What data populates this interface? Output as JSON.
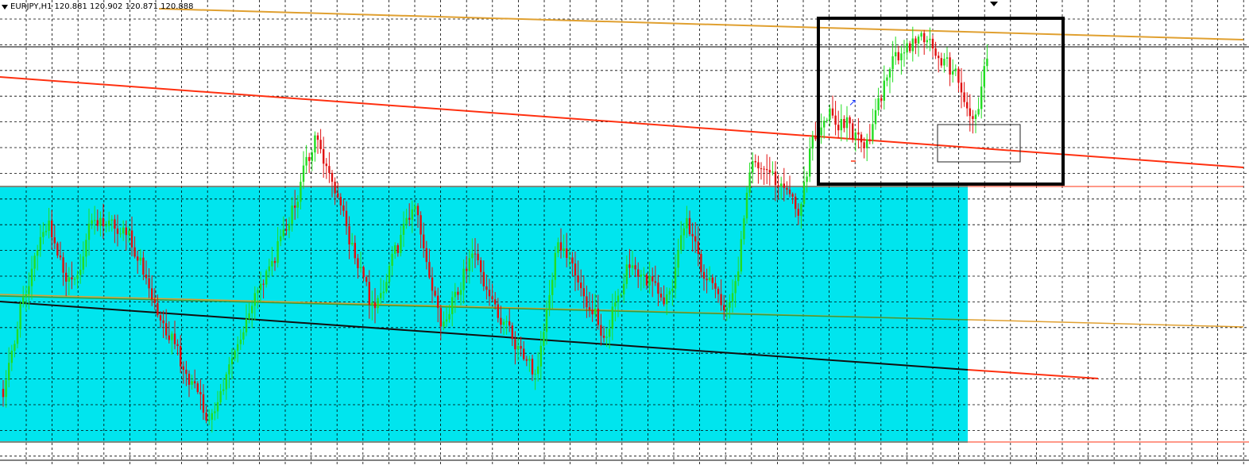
{
  "header": {
    "symbol": "EURJPY,H1",
    "ohlc": "120.881 120.902 120.871 120.888"
  },
  "colors": {
    "background": "#ffffff",
    "grid": "#000000",
    "zone_fill": "#00e5ee",
    "bull_candle": "#22dd22",
    "bear_candle": "#e01010",
    "trendline_gold": "#e0a030",
    "trendline_red": "#ff3010",
    "trendline_green": "#3a9a3a",
    "trendline_black": "#101010",
    "highlight_box": "#000000"
  },
  "chart_data": {
    "type": "candlestick",
    "instrument": "EURJPY",
    "timeframe": "H1",
    "last_bar": {
      "open": 120.881,
      "high": 120.902,
      "low": 120.871,
      "close": 120.888
    },
    "grid": true,
    "price_axis_labels_visible": false,
    "time_axis_labels_visible": false,
    "annotations": [
      {
        "kind": "rectangle-fill",
        "desc": "support zone"
      },
      {
        "kind": "trendline",
        "color": "gold",
        "desc": "upper descending line"
      },
      {
        "kind": "trendline",
        "color": "red",
        "desc": "descending resistance line"
      },
      {
        "kind": "trendline",
        "color": "green",
        "desc": "lower descending line"
      },
      {
        "kind": "trendline",
        "color": "black",
        "desc": "support line continuing as red"
      },
      {
        "kind": "rectangle-outline",
        "desc": "thick highlight box around recent price"
      },
      {
        "kind": "rectangle-outline",
        "desc": "small thin box"
      },
      {
        "kind": "horizontal-line",
        "color": "red",
        "desc": "zone top level"
      },
      {
        "kind": "horizontal-line",
        "color": "black",
        "desc": "upper level"
      }
    ]
  }
}
